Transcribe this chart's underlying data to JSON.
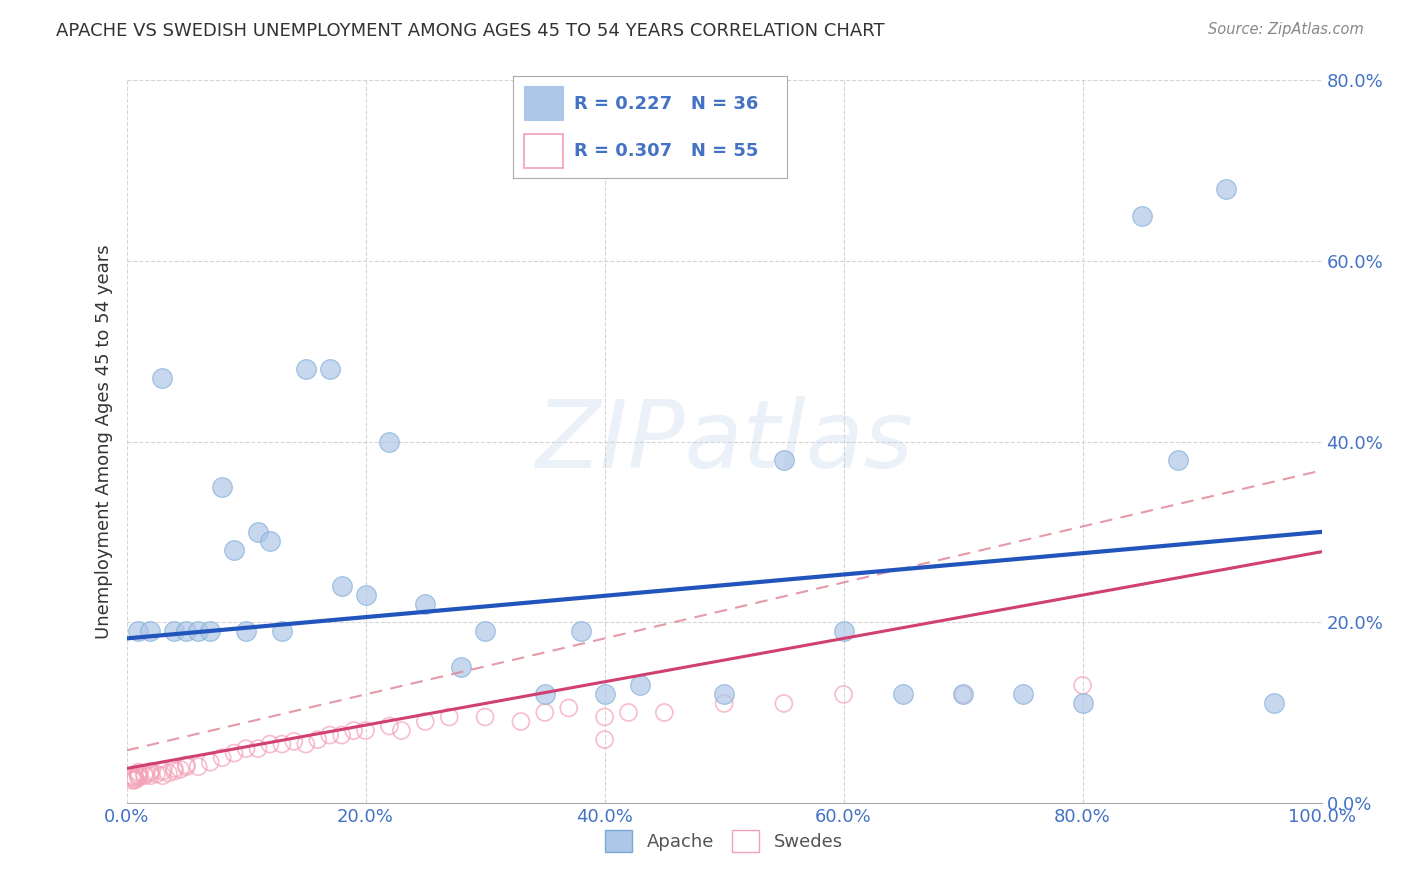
{
  "title": "APACHE VS SWEDISH UNEMPLOYMENT AMONG AGES 45 TO 54 YEARS CORRELATION CHART",
  "source": "Source: ZipAtlas.com",
  "ylabel": "Unemployment Among Ages 45 to 54 years",
  "watermark": "ZIPatlas",
  "xlim": [
    0,
    1.0
  ],
  "ylim": [
    0,
    0.8
  ],
  "xticks": [
    0.0,
    0.2,
    0.4,
    0.6,
    0.8,
    1.0
  ],
  "yticks": [
    0.0,
    0.2,
    0.4,
    0.6,
    0.8
  ],
  "xticklabels": [
    "0.0%",
    "20.0%",
    "40.0%",
    "60.0%",
    "80.0%",
    "100.0%"
  ],
  "yticklabels": [
    "0.0%",
    "20.0%",
    "40.0%",
    "60.0%",
    "80.0%"
  ],
  "apache_color": "#aec6e8",
  "swedes_color": "#f4a0b8",
  "apache_line_color": "#2255bb",
  "swedes_line_color": "#d04070",
  "swedes_dash_color": "#e08898",
  "legend_R_apache": "R = 0.227",
  "legend_N_apache": "N = 36",
  "legend_R_swedes": "R = 0.307",
  "legend_N_swedes": "N = 55",
  "apache_label": "Apache",
  "swedes_label": "Swedes",
  "apache_x": [
    0.01,
    0.02,
    0.03,
    0.04,
    0.05,
    0.06,
    0.07,
    0.08,
    0.09,
    0.1,
    0.11,
    0.12,
    0.13,
    0.15,
    0.17,
    0.18,
    0.2,
    0.22,
    0.25,
    0.28,
    0.3,
    0.35,
    0.38,
    0.4,
    0.43,
    0.5,
    0.55,
    0.6,
    0.65,
    0.7,
    0.75,
    0.8,
    0.85,
    0.88,
    0.92,
    0.96
  ],
  "apache_y": [
    0.19,
    0.19,
    0.47,
    0.19,
    0.19,
    0.19,
    0.19,
    0.35,
    0.28,
    0.19,
    0.3,
    0.29,
    0.19,
    0.48,
    0.48,
    0.24,
    0.23,
    0.4,
    0.22,
    0.15,
    0.19,
    0.12,
    0.19,
    0.12,
    0.13,
    0.12,
    0.38,
    0.19,
    0.12,
    0.12,
    0.12,
    0.11,
    0.65,
    0.38,
    0.68,
    0.11
  ],
  "swedes_x": [
    0.005,
    0.005,
    0.005,
    0.007,
    0.007,
    0.01,
    0.01,
    0.01,
    0.01,
    0.015,
    0.015,
    0.02,
    0.02,
    0.02,
    0.025,
    0.03,
    0.03,
    0.035,
    0.04,
    0.04,
    0.045,
    0.05,
    0.05,
    0.06,
    0.07,
    0.08,
    0.09,
    0.1,
    0.11,
    0.12,
    0.13,
    0.14,
    0.15,
    0.16,
    0.17,
    0.18,
    0.19,
    0.2,
    0.22,
    0.23,
    0.25,
    0.27,
    0.3,
    0.33,
    0.35,
    0.37,
    0.4,
    0.42,
    0.45,
    0.5,
    0.55,
    0.6,
    0.7,
    0.8,
    0.4
  ],
  "swedes_y": [
    0.025,
    0.028,
    0.03,
    0.025,
    0.027,
    0.028,
    0.03,
    0.032,
    0.034,
    0.03,
    0.032,
    0.03,
    0.033,
    0.035,
    0.032,
    0.03,
    0.035,
    0.033,
    0.035,
    0.038,
    0.037,
    0.04,
    0.042,
    0.04,
    0.045,
    0.05,
    0.055,
    0.06,
    0.06,
    0.065,
    0.065,
    0.068,
    0.065,
    0.07,
    0.075,
    0.075,
    0.08,
    0.08,
    0.085,
    0.08,
    0.09,
    0.095,
    0.095,
    0.09,
    0.1,
    0.105,
    0.095,
    0.1,
    0.1,
    0.11,
    0.11,
    0.12,
    0.12,
    0.13,
    0.07
  ],
  "background_color": "#ffffff",
  "grid_color": "#cccccc"
}
